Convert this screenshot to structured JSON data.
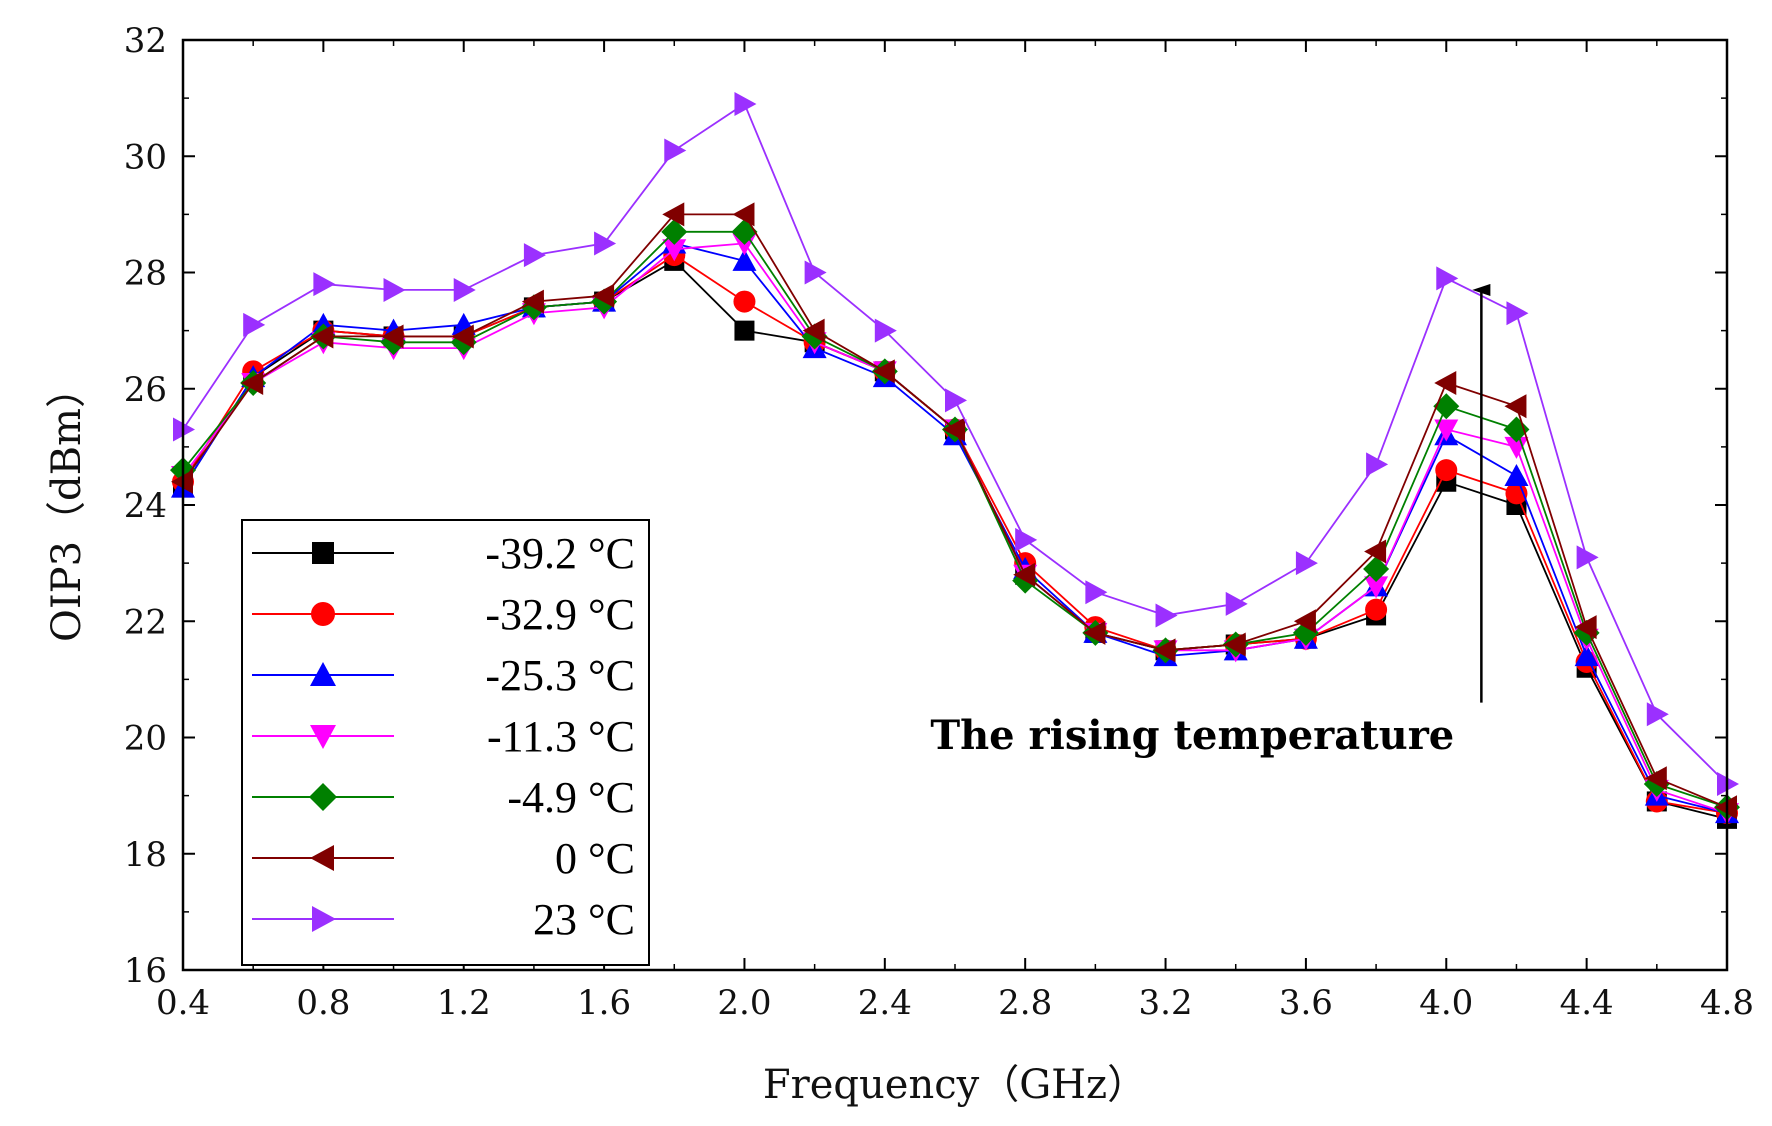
{
  "chart_data": {
    "type": "line",
    "title": "",
    "xlabel": "Frequency（GHz）",
    "ylabel": "OIP3（dBm）",
    "xlim": [
      0.4,
      4.8
    ],
    "ylim": [
      16,
      32
    ],
    "x_ticks": [
      "0.4",
      "0.8",
      "1.2",
      "1.6",
      "2.0",
      "2.4",
      "2.8",
      "3.2",
      "3.6",
      "4.0",
      "4.4",
      "4.8"
    ],
    "y_ticks": [
      "16",
      "18",
      "20",
      "22",
      "24",
      "26",
      "28",
      "30",
      "32"
    ],
    "grid": false,
    "legend_position": "bottom-left",
    "x": [
      0.4,
      0.6,
      0.8,
      1.0,
      1.2,
      1.4,
      1.6,
      1.8,
      2.0,
      2.2,
      2.4,
      2.6,
      2.8,
      3.0,
      3.2,
      3.4,
      3.6,
      3.8,
      4.0,
      4.2,
      4.4,
      4.6,
      4.8
    ],
    "series": [
      {
        "name": "-39.2 °C",
        "color": "#000000",
        "marker": "square",
        "values": [
          24.3,
          26.2,
          27.0,
          26.9,
          26.9,
          27.4,
          27.5,
          28.2,
          27.0,
          26.8,
          26.3,
          25.3,
          22.8,
          21.8,
          21.5,
          21.6,
          21.7,
          22.1,
          24.4,
          24.0,
          21.2,
          18.9,
          18.6
        ]
      },
      {
        "name": "-32.9 °C",
        "color": "#ff0000",
        "marker": "circle",
        "values": [
          24.4,
          26.3,
          27.0,
          26.9,
          26.9,
          27.4,
          27.5,
          28.3,
          27.5,
          26.8,
          26.3,
          25.3,
          23.0,
          21.9,
          21.5,
          21.6,
          21.7,
          22.2,
          24.6,
          24.2,
          21.3,
          18.9,
          18.7
        ]
      },
      {
        "name": "-25.3 °C",
        "color": "#0000ff",
        "marker": "triangle-up",
        "values": [
          24.3,
          26.2,
          27.1,
          27.0,
          27.1,
          27.4,
          27.5,
          28.5,
          28.2,
          26.7,
          26.2,
          25.2,
          22.9,
          21.8,
          21.4,
          21.5,
          21.7,
          22.6,
          25.2,
          24.5,
          21.4,
          19.0,
          18.7
        ]
      },
      {
        "name": "-11.3 °C",
        "color": "#ff00ff",
        "marker": "triangle-down",
        "values": [
          24.5,
          26.1,
          26.8,
          26.7,
          26.7,
          27.3,
          27.4,
          28.4,
          28.5,
          26.8,
          26.3,
          25.3,
          22.8,
          21.8,
          21.5,
          21.5,
          21.7,
          22.6,
          25.3,
          25.0,
          21.7,
          19.1,
          18.7
        ]
      },
      {
        "name": "-4.9 °C",
        "color": "#008000",
        "marker": "diamond",
        "values": [
          24.6,
          26.1,
          26.9,
          26.8,
          26.8,
          27.4,
          27.5,
          28.7,
          28.7,
          26.9,
          26.3,
          25.3,
          22.7,
          21.8,
          21.5,
          21.6,
          21.8,
          22.9,
          25.7,
          25.3,
          21.8,
          19.2,
          18.8
        ]
      },
      {
        "name": "0 °C",
        "color": "#800000",
        "marker": "triangle-left",
        "values": [
          24.4,
          26.1,
          26.9,
          26.9,
          26.9,
          27.5,
          27.6,
          29.0,
          29.0,
          27.0,
          26.3,
          25.3,
          22.8,
          21.8,
          21.5,
          21.6,
          22.0,
          23.2,
          26.1,
          25.7,
          21.9,
          19.3,
          18.8
        ]
      },
      {
        "name": "23 °C",
        "color": "#9b30ff",
        "marker": "triangle-right",
        "values": [
          25.3,
          27.1,
          27.8,
          27.7,
          27.7,
          28.3,
          28.5,
          30.1,
          30.9,
          28.0,
          27.0,
          25.8,
          23.4,
          22.5,
          22.1,
          22.3,
          23.0,
          24.7,
          27.9,
          27.3,
          23.1,
          20.4,
          19.2
        ]
      }
    ],
    "annotations": [
      {
        "text": "The rising temperature",
        "arrow_x": 4.1,
        "arrow_from_y": 20.6,
        "arrow_to_y": 27.7
      }
    ]
  }
}
